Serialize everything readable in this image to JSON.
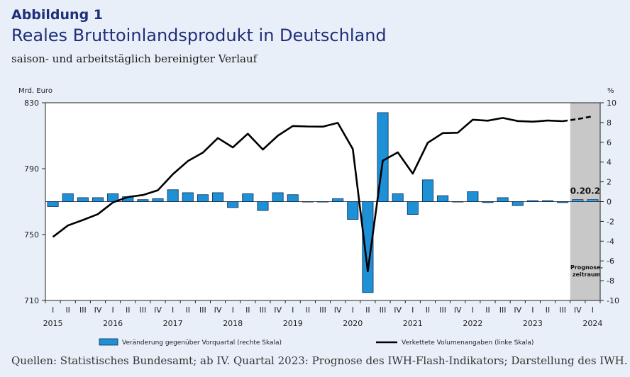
{
  "header": {
    "figure_label": "Abbildung 1",
    "title": "Reales Bruttoinlandsprodukt in Deutschland",
    "subtitle": "saison- und arbeitstäglich bereinigter Verlauf"
  },
  "source": "Quellen: Statistisches Bundesamt; ab IV. Quartal 2023: Prognose des IWH-Flash-Indikators; Darstellung des IWH.",
  "colors": {
    "background": "#e9eff8",
    "bar": "#1e90d6",
    "bar_forecast": "#4aa8e0",
    "line": "#000000",
    "forecast_band": "#c8c8c8",
    "title": "#1f2f7a"
  },
  "chart_data": {
    "type": "bar",
    "left_axis": {
      "label": "Mrd. Euro",
      "range": [
        710,
        830
      ],
      "ticks": [
        710,
        750,
        790,
        830
      ]
    },
    "right_axis": {
      "label": "%",
      "range": [
        -10,
        10
      ],
      "ticks": [
        -10,
        -8,
        -6,
        -4,
        -2,
        0,
        2,
        4,
        6,
        8,
        10
      ]
    },
    "quarter_labels": [
      "I",
      "II",
      "III",
      "IV"
    ],
    "years": [
      "2015",
      "2016",
      "2017",
      "2018",
      "2019",
      "2020",
      "2021",
      "2022",
      "2023",
      "2024"
    ],
    "forecast_label": "Prognose-\nzeitraum",
    "forecast_from_index": 35,
    "data_labels": [
      {
        "index": 35,
        "text": "0.2"
      },
      {
        "index": 36,
        "text": "0.2"
      }
    ],
    "series": [
      {
        "name": "Veränderung gegenüber Vorquartal (rechte Skala)",
        "type": "bar",
        "axis": "right",
        "values": [
          -0.5,
          0.8,
          0.4,
          0.4,
          0.8,
          0.5,
          0.2,
          0.3,
          1.2,
          0.9,
          0.7,
          0.9,
          -0.6,
          0.8,
          -0.9,
          0.9,
          0.7,
          0.0,
          0.0,
          0.3,
          -1.8,
          -9.2,
          9.0,
          0.8,
          -1.3,
          2.2,
          0.6,
          0.0,
          1.0,
          -0.1,
          0.4,
          -0.4,
          0.1,
          0.1,
          -0.1,
          0.2,
          0.2
        ]
      },
      {
        "name": "Verkettete Volumenangaben (linke Skala)",
        "type": "line",
        "axis": "left",
        "values": [
          748.6,
          755.5,
          758.8,
          762.4,
          769.5,
          772.8,
          774.0,
          776.9,
          786.6,
          794.6,
          799.7,
          808.6,
          802.9,
          811.2,
          801.6,
          810.0,
          815.9,
          815.6,
          815.5,
          817.8,
          801.9,
          727.7,
          794.8,
          799.9,
          787.0,
          805.7,
          811.6,
          811.8,
          819.7,
          819.1,
          820.8,
          818.9,
          818.5,
          819.2,
          818.8,
          820.1,
          821.8
        ]
      }
    ]
  }
}
